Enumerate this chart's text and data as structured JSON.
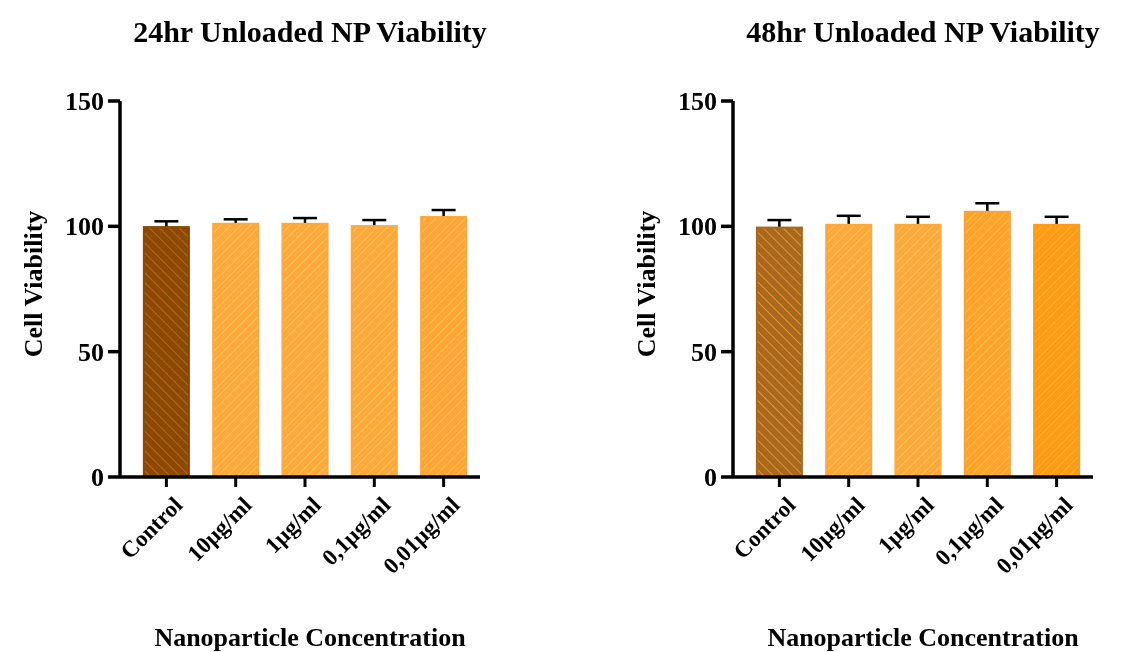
{
  "chart_data": [
    {
      "type": "bar",
      "title": "24hr Unloaded NP Viability",
      "xlabel": "Nanoparticle Concentration",
      "ylabel": "Cell Viability",
      "categories": [
        "Control",
        "10µg/ml",
        "1µg/ml",
        "0,1µg/ml",
        "0,01µg/ml"
      ],
      "values": [
        99.7,
        101,
        101,
        100.1,
        103.7
      ],
      "errors": [
        2.3,
        1.8,
        2.3,
        2.4,
        2.8
      ],
      "colors": [
        "#8a4a05",
        "#ffa83e",
        "#ffa83e",
        "#ffa83e",
        "#ffa53a"
      ],
      "ylim": [
        0,
        150
      ],
      "yticks": [
        0,
        50,
        100,
        150
      ],
      "grid": false
    },
    {
      "type": "bar",
      "title": "48hr Unloaded NP Viability",
      "xlabel": "Nanoparticle Concentration",
      "ylabel": "Cell Viability",
      "categories": [
        "Control",
        "10µg/ml",
        "1µg/ml",
        "0,1µg/ml",
        "0,01µg/ml"
      ],
      "values": [
        99.5,
        100.6,
        100.6,
        105.8,
        100.6
      ],
      "errors": [
        3,
        3.6,
        3.2,
        3.4,
        3.2
      ],
      "colors": [
        "#a8691f",
        "#ffa83e",
        "#ffa83e",
        "#ffa330",
        "#ff9a1a"
      ],
      "ylim": [
        0,
        150
      ],
      "yticks": [
        0,
        50,
        100,
        150
      ],
      "grid": false
    }
  ]
}
